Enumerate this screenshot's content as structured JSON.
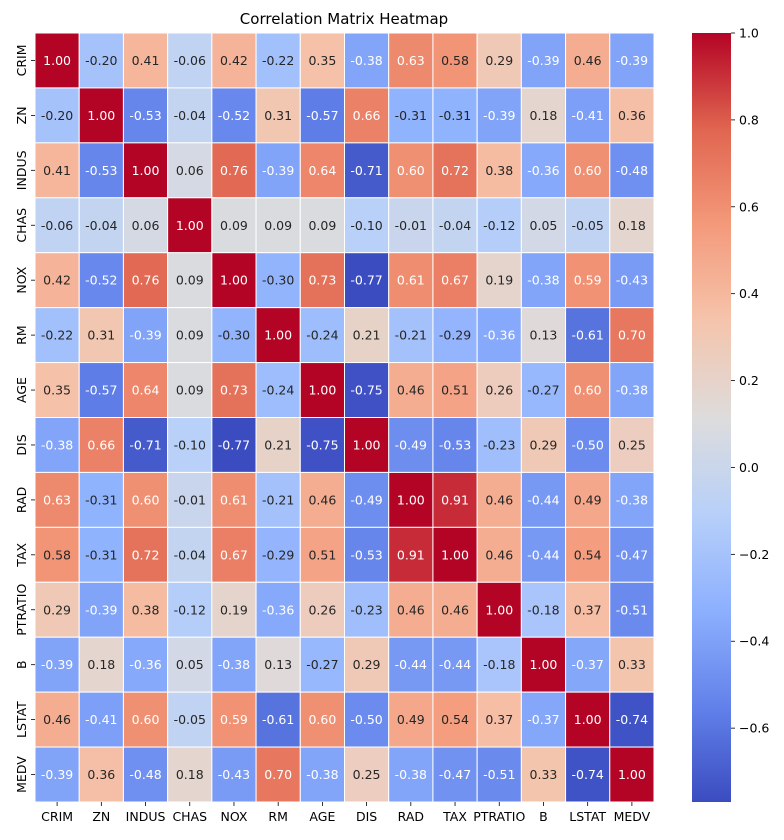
{
  "chart_data": {
    "type": "heatmap",
    "title": "Correlation Matrix Heatmap",
    "labels": [
      "CRIM",
      "ZN",
      "INDUS",
      "CHAS",
      "NOX",
      "RM",
      "AGE",
      "DIS",
      "RAD",
      "TAX",
      "PTRATIO",
      "B",
      "LSTAT",
      "MEDV"
    ],
    "matrix": [
      [
        1.0,
        -0.2,
        0.41,
        -0.06,
        0.42,
        -0.22,
        0.35,
        -0.38,
        0.63,
        0.58,
        0.29,
        -0.39,
        0.46,
        -0.39
      ],
      [
        -0.2,
        1.0,
        -0.53,
        -0.04,
        -0.52,
        0.31,
        -0.57,
        0.66,
        -0.31,
        -0.31,
        -0.39,
        0.18,
        -0.41,
        0.36
      ],
      [
        0.41,
        -0.53,
        1.0,
        0.06,
        0.76,
        -0.39,
        0.64,
        -0.71,
        0.6,
        0.72,
        0.38,
        -0.36,
        0.6,
        -0.48
      ],
      [
        -0.06,
        -0.04,
        0.06,
        1.0,
        0.09,
        0.09,
        0.09,
        -0.1,
        -0.01,
        -0.04,
        -0.12,
        0.05,
        -0.05,
        0.18
      ],
      [
        0.42,
        -0.52,
        0.76,
        0.09,
        1.0,
        -0.3,
        0.73,
        -0.77,
        0.61,
        0.67,
        0.19,
        -0.38,
        0.59,
        -0.43
      ],
      [
        -0.22,
        0.31,
        -0.39,
        0.09,
        -0.3,
        1.0,
        -0.24,
        0.21,
        -0.21,
        -0.29,
        -0.36,
        0.13,
        -0.61,
        0.7
      ],
      [
        0.35,
        -0.57,
        0.64,
        0.09,
        0.73,
        -0.24,
        1.0,
        -0.75,
        0.46,
        0.51,
        0.26,
        -0.27,
        0.6,
        -0.38
      ],
      [
        -0.38,
        0.66,
        -0.71,
        -0.1,
        -0.77,
        0.21,
        -0.75,
        1.0,
        -0.49,
        -0.53,
        -0.23,
        0.29,
        -0.5,
        0.25
      ],
      [
        0.63,
        -0.31,
        0.6,
        -0.01,
        0.61,
        -0.21,
        0.46,
        -0.49,
        1.0,
        0.91,
        0.46,
        -0.44,
        0.49,
        -0.38
      ],
      [
        0.58,
        -0.31,
        0.72,
        -0.04,
        0.67,
        -0.29,
        0.51,
        -0.53,
        0.91,
        1.0,
        0.46,
        -0.44,
        0.54,
        -0.47
      ],
      [
        0.29,
        -0.39,
        0.38,
        -0.12,
        0.19,
        -0.36,
        0.26,
        -0.23,
        0.46,
        0.46,
        1.0,
        -0.18,
        0.37,
        -0.51
      ],
      [
        -0.39,
        0.18,
        -0.36,
        0.05,
        -0.38,
        0.13,
        -0.27,
        0.29,
        -0.44,
        -0.44,
        -0.18,
        1.0,
        -0.37,
        0.33
      ],
      [
        0.46,
        -0.41,
        0.6,
        -0.05,
        0.59,
        -0.61,
        0.6,
        -0.5,
        0.49,
        0.54,
        0.37,
        -0.37,
        1.0,
        -0.74
      ],
      [
        -0.39,
        0.36,
        -0.48,
        0.18,
        -0.43,
        0.7,
        -0.38,
        0.25,
        -0.38,
        -0.47,
        -0.51,
        0.33,
        -0.74,
        1.0
      ]
    ],
    "value_format": "2 decimals",
    "colormap": "coolwarm",
    "color_range": [
      -0.77,
      1.0
    ],
    "colorbar_ticks": [
      1.0,
      0.8,
      0.6,
      0.4,
      0.2,
      0.0,
      -0.2,
      -0.4,
      -0.6
    ],
    "colorbar_tick_labels": [
      "1.0",
      "0.8",
      "0.6",
      "0.4",
      "0.2",
      "0.0",
      "−0.2",
      "−0.4",
      "−0.6"
    ],
    "colormap_stops": [
      "#3b4cc0",
      "#6282ea",
      "#8db0fe",
      "#b8d0f9",
      "#dddcdc",
      "#f5c4ac",
      "#f49a7b",
      "#e0654f",
      "#b40426"
    ],
    "cell_gap_color": "#ffffff",
    "grid": false,
    "legend": "colorbar-right"
  }
}
